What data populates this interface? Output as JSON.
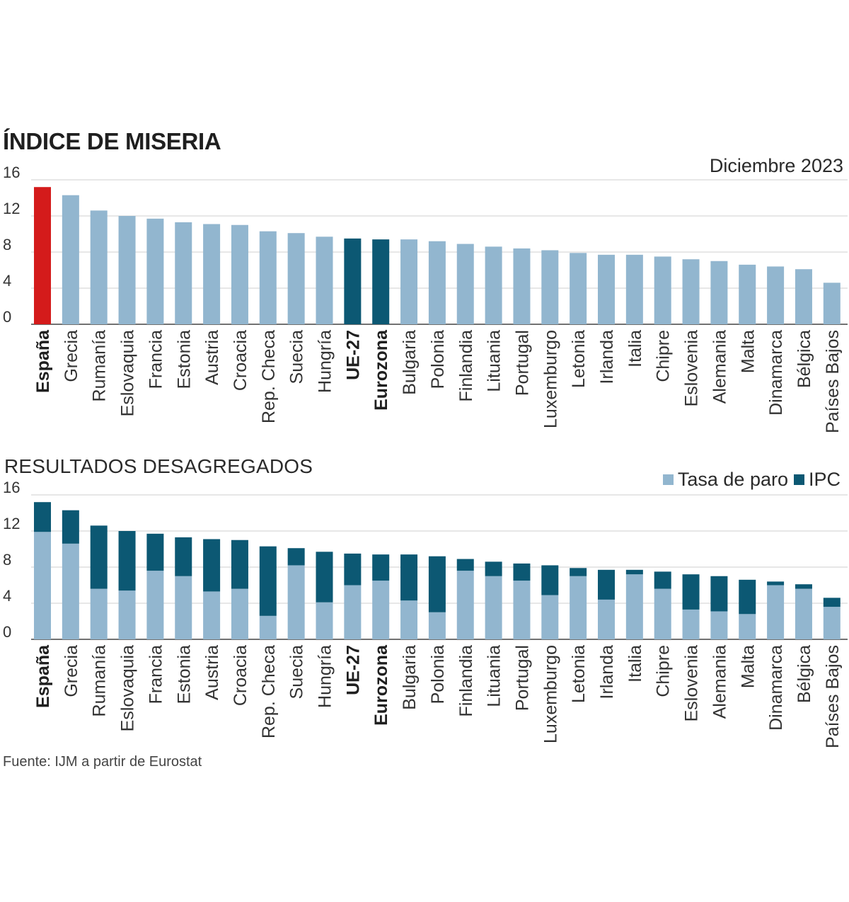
{
  "chart_data": [
    {
      "type": "bar",
      "title": "ÍNDICE DE MISERIA",
      "subtitle": "Diciembre 2023",
      "categories": [
        "España",
        "Grecia",
        "Rumanía",
        "Eslovaquia",
        "Francia",
        "Estonia",
        "Austria",
        "Croacia",
        "Rep. Checa",
        "Suecia",
        "Hungría",
        "UE-27",
        "Eurozona",
        "Bulgaria",
        "Polonia",
        "Finlandia",
        "Lituania",
        "Portugal",
        "Luxemburgo",
        "Letonia",
        "Irlanda",
        "Italia",
        "Chipre",
        "Eslovenia",
        "Alemania",
        "Malta",
        "Dinamarca",
        "Bélgica",
        "Países Bajos"
      ],
      "highlight_categories": [
        "España",
        "UE-27",
        "Eurozona"
      ],
      "values": [
        15.2,
        14.3,
        12.6,
        12.0,
        11.7,
        11.3,
        11.1,
        11.0,
        10.3,
        10.1,
        9.7,
        9.5,
        9.4,
        9.4,
        9.2,
        8.9,
        8.6,
        8.4,
        8.2,
        7.9,
        7.7,
        7.7,
        7.5,
        7.2,
        7.0,
        6.6,
        6.4,
        6.1,
        4.6
      ],
      "yticks": [
        0,
        4,
        8,
        12,
        16
      ],
      "ylim": [
        0,
        16
      ],
      "xlabel": "",
      "ylabel": "",
      "colors": {
        "default": "#92b6cf",
        "highlight": "#d41b1b",
        "aggregate": "#0c5873"
      },
      "grid": true
    },
    {
      "type": "bar",
      "stacked": true,
      "title": "RESULTADOS DESAGREGADOS",
      "categories": [
        "España",
        "Grecia",
        "Rumanía",
        "Eslovaquia",
        "Francia",
        "Estonia",
        "Austria",
        "Croacia",
        "Rep. Checa",
        "Suecia",
        "Hungría",
        "UE-27",
        "Eurozona",
        "Bulgaria",
        "Polonia",
        "Finlandia",
        "Lituania",
        "Portugal",
        "Luxemburgo",
        "Letonia",
        "Irlanda",
        "Italia",
        "Chipre",
        "Eslovenia",
        "Alemania",
        "Malta",
        "Dinamarca",
        "Bélgica",
        "Países Bajos"
      ],
      "highlight_categories": [
        "España",
        "UE-27",
        "Eurozona"
      ],
      "series": [
        {
          "name": "Tasa de paro",
          "color": "#92b6cf",
          "values": [
            11.9,
            10.6,
            5.6,
            5.4,
            7.6,
            7.0,
            5.3,
            5.6,
            2.6,
            8.2,
            4.1,
            6.0,
            6.5,
            4.3,
            3.0,
            7.6,
            7.0,
            6.5,
            4.9,
            7.0,
            4.4,
            7.2,
            5.6,
            3.3,
            3.1,
            2.8,
            6.0,
            5.6,
            3.6
          ]
        },
        {
          "name": "IPC",
          "color": "#0c5873",
          "values": [
            3.3,
            3.7,
            7.0,
            6.6,
            4.1,
            4.3,
            5.8,
            5.4,
            7.7,
            1.9,
            5.6,
            3.5,
            2.9,
            5.1,
            6.2,
            1.3,
            1.6,
            1.9,
            3.3,
            0.9,
            3.3,
            0.5,
            1.9,
            3.9,
            3.9,
            3.8,
            0.4,
            0.5,
            1.0
          ]
        }
      ],
      "yticks": [
        0,
        4,
        8,
        12,
        16
      ],
      "ylim": [
        0,
        16
      ],
      "xlabel": "",
      "ylabel": "",
      "legend_position": "top-right",
      "grid": true
    }
  ],
  "source": "Fuente: IJM a partir de Eurostat"
}
